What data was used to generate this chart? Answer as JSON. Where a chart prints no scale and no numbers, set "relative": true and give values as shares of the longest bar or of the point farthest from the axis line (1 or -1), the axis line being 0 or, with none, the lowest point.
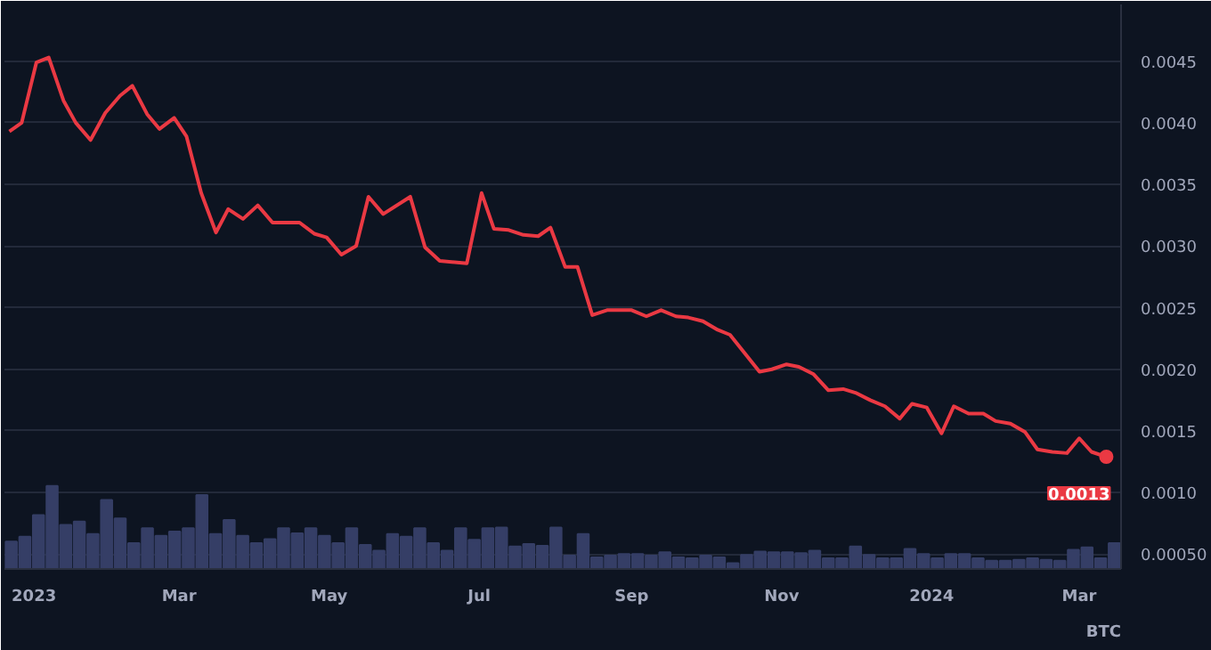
{
  "chart_data": [
    {
      "type": "line",
      "x": [
        "2022-12-22",
        "2022-12-27",
        "2023-01-02",
        "2023-01-07",
        "2023-01-13",
        "2023-01-18",
        "2023-01-24",
        "2023-01-30",
        "2023-02-05",
        "2023-02-10",
        "2023-02-16",
        "2023-02-21",
        "2023-02-27",
        "2023-03-04",
        "2023-03-10",
        "2023-03-16",
        "2023-03-21",
        "2023-03-27",
        "2023-04-02",
        "2023-04-08",
        "2023-04-19",
        "2023-04-25",
        "2023-04-30",
        "2023-05-06",
        "2023-05-12",
        "2023-05-17",
        "2023-05-23",
        "2023-06-03",
        "2023-06-09",
        "2023-06-15",
        "2023-06-26",
        "2023-07-02",
        "2023-07-07",
        "2023-07-13",
        "2023-07-19",
        "2023-07-25",
        "2023-07-30",
        "2023-08-05",
        "2023-08-10",
        "2023-08-16",
        "2023-08-22",
        "2023-09-01",
        "2023-09-07",
        "2023-09-13",
        "2023-09-19",
        "2023-09-24",
        "2023-09-30",
        "2023-10-06",
        "2023-10-11",
        "2023-10-23",
        "2023-10-28",
        "2023-11-03",
        "2023-11-08",
        "2023-11-14",
        "2023-11-20",
        "2023-11-26",
        "2023-12-01",
        "2023-12-07",
        "2023-12-13",
        "2023-12-19",
        "2023-12-24",
        "2023-12-30",
        "2024-01-05",
        "2024-01-10",
        "2024-01-16",
        "2024-01-22",
        "2024-01-27",
        "2024-02-02",
        "2024-02-08",
        "2024-02-13",
        "2024-02-19",
        "2024-02-25",
        "2024-03-01",
        "2024-03-06",
        "2024-03-12"
      ],
      "series": [
        {
          "color": "#ea3943",
          "values": [
            0.00393,
            0.004,
            0.00449,
            0.00453,
            0.00418,
            0.004,
            0.00386,
            0.00408,
            0.00422,
            0.0043,
            0.00407,
            0.00395,
            0.00404,
            0.00389,
            0.00343,
            0.00311,
            0.0033,
            0.00322,
            0.00333,
            0.00319,
            0.00319,
            0.0031,
            0.00307,
            0.00293,
            0.003,
            0.0034,
            0.00326,
            0.0034,
            0.00299,
            0.00288,
            0.00286,
            0.00343,
            0.00314,
            0.00313,
            0.00309,
            0.00308,
            0.00315,
            0.00283,
            0.00283,
            0.00244,
            0.00248,
            0.00248,
            0.00243,
            0.00248,
            0.00243,
            0.00242,
            0.00239,
            0.00232,
            0.00228,
            0.00198,
            0.002,
            0.00204,
            0.00202,
            0.00196,
            0.00183,
            0.00184,
            0.00181,
            0.00175,
            0.0017,
            0.0016,
            0.00172,
            0.00169,
            0.00148,
            0.0017,
            0.00164,
            0.00164,
            0.00158,
            0.00156,
            0.00149,
            0.00135,
            0.00133,
            0.00132,
            0.00144,
            0.00133,
            0.00129
          ],
          "value_labels": [
            null,
            null,
            null,
            null,
            null,
            null,
            null,
            null,
            null,
            null,
            null,
            null,
            null,
            null,
            null,
            null,
            null,
            null,
            null,
            null,
            null,
            null,
            null,
            null,
            null,
            null,
            null,
            null,
            null,
            null,
            null,
            null,
            null,
            null,
            null,
            null,
            null,
            null,
            null,
            null,
            null,
            null,
            null,
            null,
            null,
            null,
            null,
            null,
            null,
            null,
            null,
            null,
            null,
            null,
            null,
            null,
            null,
            null,
            null,
            null,
            null,
            null,
            null,
            null,
            null,
            null,
            null,
            null,
            null,
            null,
            null,
            null,
            null,
            null,
            "0.0013"
          ]
        }
      ],
      "xlim": [
        "2022-12-20",
        "2024-03-18"
      ],
      "xticks": [
        {
          "value": "2023-01-01",
          "label": "2023"
        },
        {
          "value": "2023-03-01",
          "label": "Mar"
        },
        {
          "value": "2023-05-01",
          "label": "May"
        },
        {
          "value": "2023-07-01",
          "label": "Jul"
        },
        {
          "value": "2023-09-01",
          "label": "Sep"
        },
        {
          "value": "2023-11-01",
          "label": "Nov"
        },
        {
          "value": "2024-01-01",
          "label": "2024"
        },
        {
          "value": "2024-03-01",
          "label": "Mar"
        }
      ],
      "ylim": [
        0.00038,
        0.00496
      ],
      "yticks": [
        {
          "value": 0.0005,
          "label": "0.00050"
        },
        {
          "value": 0.001,
          "label": "0.0010"
        },
        {
          "value": 0.0015,
          "label": "0.0015"
        },
        {
          "value": 0.002,
          "label": "0.0020"
        },
        {
          "value": 0.0025,
          "label": "0.0025"
        },
        {
          "value": 0.003,
          "label": "0.0030"
        },
        {
          "value": 0.0035,
          "label": "0.0035"
        },
        {
          "value": 0.004,
          "label": "0.0040"
        },
        {
          "value": 0.0045,
          "label": "0.0045"
        }
      ],
      "grid": "y",
      "marker": "none",
      "line_style": "solid",
      "annotations": [
        "BTC"
      ]
    },
    {
      "type": "bar",
      "relative": true,
      "color": "#353e66",
      "categories": [
        null,
        null,
        null,
        null,
        null,
        null,
        null,
        null,
        null,
        null,
        null,
        null,
        null,
        null,
        null,
        null,
        null,
        null,
        null,
        null,
        null,
        null,
        null,
        null,
        null,
        null,
        null,
        null,
        null,
        null,
        null,
        null,
        null,
        null,
        null,
        null,
        null,
        null,
        null,
        null,
        null,
        null,
        null,
        null,
        null,
        null,
        null,
        null,
        null,
        null,
        null,
        null,
        null,
        null,
        null,
        null,
        null,
        null,
        null,
        null,
        null,
        null,
        null,
        null,
        null,
        null,
        null,
        null,
        null,
        null,
        null,
        null,
        null,
        null,
        null,
        null,
        null,
        null,
        null,
        null,
        null,
        null
      ],
      "values": [
        0.33,
        0.39,
        0.65,
        1,
        0.53,
        0.57,
        0.42,
        0.83,
        0.61,
        0.31,
        0.49,
        0.4,
        0.45,
        0.49,
        0.89,
        0.42,
        0.59,
        0.4,
        0.31,
        0.36,
        0.49,
        0.43,
        0.49,
        0.4,
        0.31,
        0.49,
        0.29,
        0.22,
        0.42,
        0.39,
        0.49,
        0.31,
        0.22,
        0.49,
        0.35,
        0.49,
        0.5,
        0.27,
        0.3,
        0.28,
        0.5,
        0.16,
        0.42,
        0.14,
        0.16,
        0.18,
        0.18,
        0.16,
        0.2,
        0.14,
        0.13,
        0.16,
        0.14,
        0.07,
        0.17,
        0.21,
        0.2,
        0.2,
        0.19,
        0.22,
        0.13,
        0.13,
        0.27,
        0.17,
        0.13,
        0.13,
        0.24,
        0.18,
        0.13,
        0.18,
        0.18,
        0.13,
        0.1,
        0.1,
        0.11,
        0.13,
        0.11,
        0.1,
        0.23,
        0.26,
        0.13,
        0.31
      ]
    }
  ]
}
